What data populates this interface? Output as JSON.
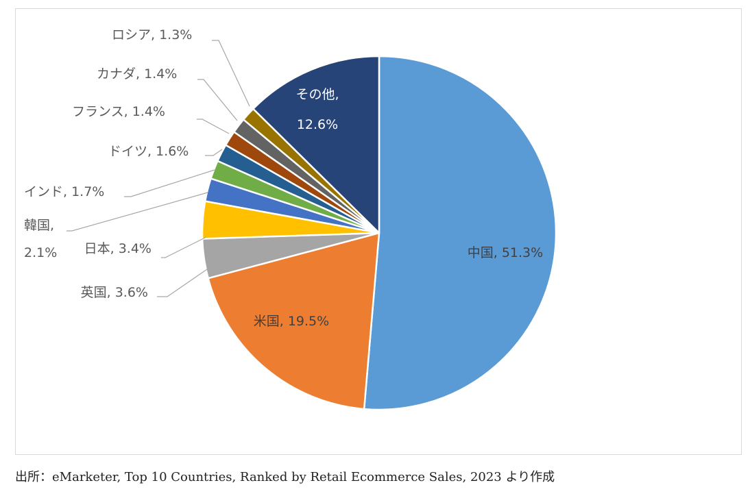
{
  "chart_data": {
    "type": "pie",
    "title": "",
    "unit": "%",
    "start": "12 o'clock, clockwise",
    "slices": [
      {
        "label": "中国",
        "value": 51.3,
        "color": "#5b9bd5",
        "label_pos": "inside",
        "text_color": "#404040",
        "text": "中国, 51.3%"
      },
      {
        "label": "米国",
        "value": 19.5,
        "color": "#ed7d31",
        "label_pos": "inside",
        "text_color": "#404040",
        "text": "米国, 19.5%"
      },
      {
        "label": "英国",
        "value": 3.6,
        "color": "#a5a5a5",
        "label_pos": "outside",
        "text": "英国, 3.6%"
      },
      {
        "label": "日本",
        "value": 3.4,
        "color": "#ffc000",
        "label_pos": "outside",
        "text": "日本, 3.4%"
      },
      {
        "label": "韓国",
        "value": 2.1,
        "color": "#4472c4",
        "label_pos": "outside",
        "text_lines": [
          "韓国,",
          "2.1%"
        ]
      },
      {
        "label": "インド",
        "value": 1.7,
        "color": "#70ad47",
        "label_pos": "outside",
        "text": "インド, 1.7%"
      },
      {
        "label": "ドイツ",
        "value": 1.6,
        "color": "#255e91",
        "label_pos": "outside",
        "text": "ドイツ, 1.6%"
      },
      {
        "label": "フランス",
        "value": 1.4,
        "color": "#9e480e",
        "label_pos": "outside",
        "text": "フランス, 1.4%"
      },
      {
        "label": "カナダ",
        "value": 1.4,
        "color": "#636363",
        "label_pos": "outside",
        "text": "カナダ, 1.4%"
      },
      {
        "label": "ロシア",
        "value": 1.3,
        "color": "#997300",
        "label_pos": "outside",
        "text": "ロシア, 1.3%"
      },
      {
        "label": "その他",
        "value": 12.6,
        "color": "#264478",
        "label_pos": "inside",
        "text_color": "#ffffff",
        "text_lines": [
          "その他,",
          "12.6%"
        ]
      }
    ]
  },
  "source_note": "出所：eMarketer, Top 10 Countries, Ranked by Retail Ecommerce Sales, 2023 より作成"
}
